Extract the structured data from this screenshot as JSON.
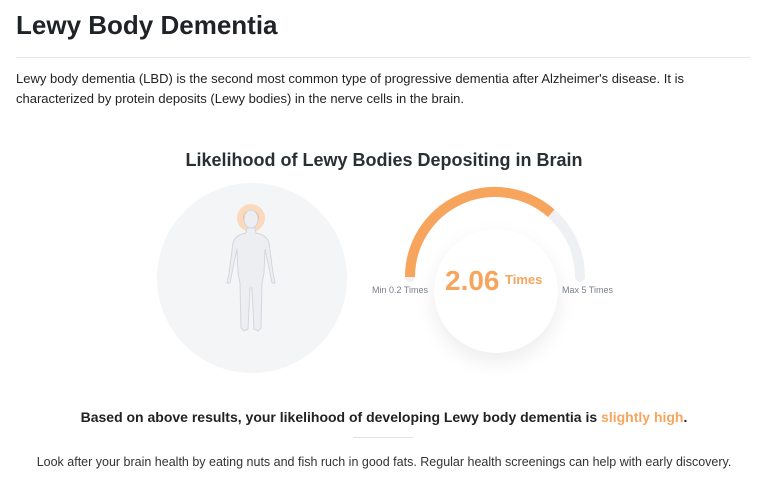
{
  "page": {
    "title": "Lewy Body Dementia",
    "intro": "Lewy body dementia (LBD) is the second most common type of progressive dementia after Alzheimer's disease. It is characterized by protein deposits (Lewy bodies) in the nerve cells in the brain."
  },
  "chart": {
    "title": "Likelihood of Lewy Bodies Depositing in Brain",
    "value": "2.06",
    "unit": "Times",
    "min_label": "Min 0.2 Times",
    "max_label": "Max 5 Times",
    "gauge_fill_fraction": 0.73,
    "colors": {
      "accent": "#f7a55d",
      "track": "#eef0f3",
      "highlight": "#f9c9a0"
    }
  },
  "result": {
    "prefix": "Based on above results, your likelihood of developing Lewy body dementia is ",
    "highlight": "slightly high",
    "suffix": "."
  },
  "advice": "Look after your brain health by eating nuts and fish ruch in good fats. Regular health screenings can help with early discovery."
}
